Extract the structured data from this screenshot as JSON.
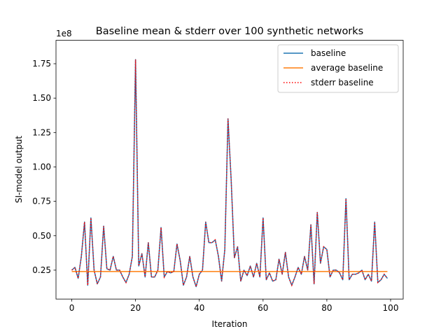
{
  "chart_data": {
    "type": "line",
    "title": "Baseline mean & stderr over 100 synthetic networks",
    "xlabel": "Iteration",
    "ylabel": "SI-model output",
    "y_multiplier_label": "1e8",
    "xlim": [
      -4.95,
      103.95
    ],
    "ylim": [
      0.04,
      1.92
    ],
    "x_ticks": [
      0,
      20,
      40,
      60,
      80,
      100
    ],
    "y_ticks": [
      0.25,
      0.5,
      0.75,
      1.0,
      1.25,
      1.5,
      1.75
    ],
    "y_tick_labels": [
      "0.25",
      "0.50",
      "0.75",
      "1.00",
      "1.25",
      "1.50",
      "1.75"
    ],
    "grid": false,
    "legend_position": "top-right",
    "series": [
      {
        "name": "baseline",
        "color": "#1f77b4",
        "style": "solid",
        "values": [
          0.25,
          0.27,
          0.19,
          0.35,
          0.6,
          0.14,
          0.63,
          0.25,
          0.15,
          0.2,
          0.57,
          0.26,
          0.25,
          0.35,
          0.25,
          0.25,
          0.2,
          0.16,
          0.22,
          0.35,
          1.78,
          0.28,
          0.37,
          0.2,
          0.45,
          0.2,
          0.2,
          0.25,
          0.56,
          0.2,
          0.24,
          0.23,
          0.24,
          0.44,
          0.32,
          0.14,
          0.2,
          0.35,
          0.2,
          0.13,
          0.22,
          0.25,
          0.6,
          0.45,
          0.45,
          0.47,
          0.35,
          0.17,
          0.4,
          1.35,
          0.9,
          0.34,
          0.42,
          0.17,
          0.25,
          0.21,
          0.28,
          0.2,
          0.3,
          0.2,
          0.63,
          0.18,
          0.23,
          0.17,
          0.18,
          0.33,
          0.22,
          0.38,
          0.2,
          0.14,
          0.2,
          0.27,
          0.22,
          0.35,
          0.25,
          0.58,
          0.15,
          0.67,
          0.3,
          0.42,
          0.4,
          0.2,
          0.25,
          0.25,
          0.23,
          0.18,
          0.77,
          0.18,
          0.22,
          0.22,
          0.23,
          0.25,
          0.18,
          0.22,
          0.17,
          0.6,
          0.16,
          0.18,
          0.22,
          0.19
        ]
      },
      {
        "name": "average baseline",
        "color": "#ff7f0e",
        "style": "solid",
        "values": [
          0.24,
          0.24
        ]
      },
      {
        "name": "stderr baseline",
        "color": "#ff0000",
        "style": "dotted",
        "values": []
      }
    ]
  }
}
